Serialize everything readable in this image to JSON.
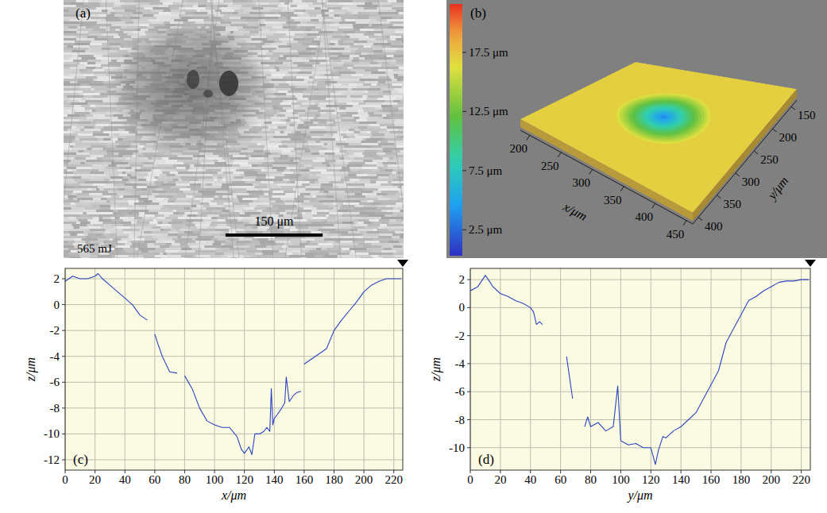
{
  "chart_data": [
    {
      "type": "image",
      "panel": "(a)",
      "annotation": "565 mJ",
      "scale_bar": {
        "value": 150,
        "label": "150 μm"
      },
      "xlim": [
        0,
        525
      ]
    },
    {
      "type": "surface",
      "panel": "(b)",
      "x_label": "x/μm",
      "y_label": "y/μm",
      "xlim": [
        185,
        460
      ],
      "ylim": [
        135,
        415
      ],
      "xticks": [
        200,
        250,
        300,
        350,
        400,
        450
      ],
      "yticks": [
        150,
        200,
        250,
        300,
        350,
        400
      ],
      "colorbar": {
        "range": [
          0.3,
          21.6
        ],
        "ticks": [
          {
            "value": 2.5,
            "label": "2.5 μm"
          },
          {
            "value": 7.5,
            "label": "7.5 μm"
          },
          {
            "value": 12.5,
            "label": "12.5 μm"
          },
          {
            "value": 17.5,
            "label": "17.5 μm"
          }
        ]
      },
      "surface": {
        "z_top": 17,
        "z_bottom": 3,
        "crater_x": 320,
        "crater_y": 265,
        "crater_radius": 70
      }
    },
    {
      "type": "line",
      "panel": "(c)",
      "x_label": "x/μm",
      "y_label": "z/μm",
      "color": "#2a44c0",
      "grid": true,
      "xlim": [
        0,
        226
      ],
      "ylim": [
        -12.8,
        2.8
      ],
      "xticks": [
        0,
        20,
        40,
        60,
        80,
        100,
        120,
        140,
        160,
        180,
        200,
        220
      ],
      "yticks": [
        -12,
        -10,
        -8,
        -6,
        -4,
        -2,
        0,
        2
      ],
      "x": [
        0,
        5,
        10,
        15,
        20,
        22,
        25,
        30,
        35,
        40,
        45,
        50,
        55,
        57,
        60,
        62,
        65,
        70,
        75,
        77,
        80,
        85,
        90,
        95,
        100,
        105,
        110,
        115,
        118,
        120,
        123,
        125,
        127,
        130,
        133,
        135,
        137,
        138,
        139,
        140,
        142,
        145,
        147,
        148,
        150,
        153,
        155,
        158,
        159,
        160,
        165,
        170,
        175,
        180,
        185,
        190,
        195,
        200,
        205,
        210,
        215,
        220,
        225
      ],
      "values": [
        1.8,
        2.2,
        2.0,
        2.0,
        2.2,
        2.4,
        2.0,
        1.5,
        1.0,
        0.5,
        0.0,
        -0.8,
        -1.2,
        null,
        -2.3,
        -3.0,
        -4.0,
        -5.2,
        -5.3,
        null,
        -5.5,
        -6.5,
        -8.0,
        -9.0,
        -9.3,
        -9.5,
        -9.5,
        -10.2,
        -11.2,
        -11.5,
        -11.0,
        -11.6,
        -10.0,
        -10.0,
        -9.8,
        -9.5,
        -9.8,
        -6.5,
        -9.3,
        -8.8,
        -8.5,
        -8.0,
        -7.6,
        -5.6,
        -7.5,
        -7.0,
        -6.8,
        -6.7,
        null,
        -4.6,
        -4.2,
        -3.8,
        -3.4,
        -2.0,
        -1.2,
        -0.5,
        0.2,
        1.0,
        1.5,
        1.8,
        2.0,
        2.0,
        2.0
      ]
    },
    {
      "type": "line",
      "panel": "(d)",
      "x_label": "y/μm",
      "y_label": "z/μm",
      "color": "#2a44c0",
      "grid": true,
      "xlim": [
        0,
        226
      ],
      "ylim": [
        -11.6,
        2.8
      ],
      "xticks": [
        0,
        20,
        40,
        60,
        80,
        100,
        120,
        140,
        160,
        180,
        200,
        220
      ],
      "yticks": [
        -10,
        -8,
        -6,
        -4,
        -2,
        0,
        2
      ],
      "x": [
        0,
        5,
        10,
        12,
        15,
        20,
        25,
        30,
        35,
        40,
        42,
        44,
        46,
        48,
        55,
        64,
        66,
        68,
        72,
        76,
        78,
        80,
        85,
        90,
        95,
        98,
        100,
        105,
        110,
        115,
        120,
        123,
        125,
        128,
        130,
        135,
        140,
        145,
        150,
        155,
        160,
        165,
        170,
        175,
        180,
        185,
        190,
        195,
        200,
        205,
        210,
        215,
        220,
        225
      ],
      "values": [
        1.2,
        1.5,
        2.3,
        2.0,
        1.5,
        1.0,
        0.8,
        0.5,
        0.3,
        0.0,
        -0.3,
        -1.2,
        -1.0,
        -1.2,
        null,
        -3.5,
        -5.0,
        -6.5,
        null,
        -8.5,
        -7.8,
        -8.5,
        -8.2,
        -8.8,
        -8.5,
        -5.6,
        -9.5,
        -9.8,
        -9.7,
        -10.0,
        -10.0,
        -11.2,
        -10.2,
        -9.2,
        -9.3,
        -8.8,
        -8.5,
        -8.0,
        -7.5,
        -6.5,
        -5.5,
        -4.5,
        -2.5,
        -1.5,
        -0.5,
        0.5,
        0.8,
        1.2,
        1.5,
        1.8,
        1.9,
        1.9,
        2.0,
        2.0
      ]
    }
  ]
}
